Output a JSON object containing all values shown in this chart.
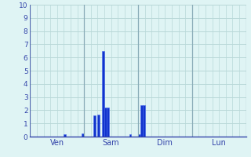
{
  "background_color": "#dff4f4",
  "grid_color": "#b8d8d8",
  "grid_color_major": "#8aacb8",
  "bar_color": "#1133cc",
  "bar_edge_color": "#4466ee",
  "ylabel_vals": [
    "0",
    "1",
    "2",
    "3",
    "4",
    "5",
    "6",
    "7",
    "8",
    "9",
    "10"
  ],
  "ylim": [
    0,
    10
  ],
  "day_labels": [
    "Ven",
    "Sam",
    "Dim",
    "Lun"
  ],
  "n_slots": 96,
  "slots_per_day": 24,
  "bar_values": [
    0,
    0,
    0,
    0,
    0,
    0,
    0,
    0,
    0,
    0,
    0,
    0,
    0,
    0,
    0,
    0.2,
    0,
    0,
    0,
    0,
    0,
    0,
    0,
    0.25,
    0,
    0,
    0,
    0,
    1.6,
    0,
    1.65,
    0,
    6.5,
    2.2,
    2.2,
    0,
    0,
    0,
    0,
    0,
    0,
    0,
    0,
    0,
    0.2,
    0,
    0,
    0,
    0.2,
    2.4,
    2.4,
    0,
    0,
    0,
    0,
    0,
    0,
    0,
    0,
    0,
    0,
    0,
    0,
    0,
    0,
    0,
    0,
    0,
    0,
    0,
    0,
    0,
    0,
    0,
    0,
    0,
    0,
    0,
    0,
    0,
    0,
    0,
    0,
    0,
    0,
    0,
    0,
    0,
    0,
    0,
    0,
    0,
    0,
    0,
    0,
    0
  ]
}
